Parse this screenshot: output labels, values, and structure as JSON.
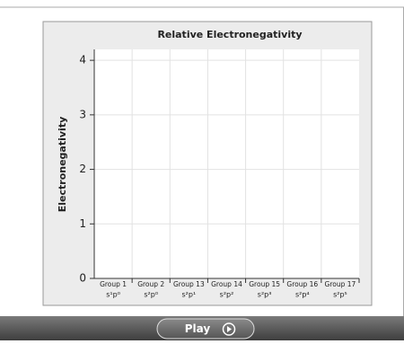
{
  "chart_data": {
    "type": "bar",
    "title": "Relative Electronegativity",
    "y_label": "Electronegativity",
    "categories": [
      "Group 1",
      "Group 2",
      "Group 13",
      "Group 14",
      "Group 15",
      "Group 16",
      "Group 17"
    ],
    "configurations": [
      "s¹p⁰",
      "s²p⁰",
      "s²p¹",
      "s²p²",
      "s²p³",
      "s²p⁴",
      "s²p⁵"
    ],
    "values": [
      null,
      null,
      null,
      null,
      null,
      null,
      null
    ],
    "color": "#4a7cc0",
    "ylim": [
      0,
      4.2
    ],
    "yticks": [
      0,
      1,
      2,
      3,
      4
    ],
    "grid": true
  },
  "controls": {
    "play_button": "Play"
  }
}
